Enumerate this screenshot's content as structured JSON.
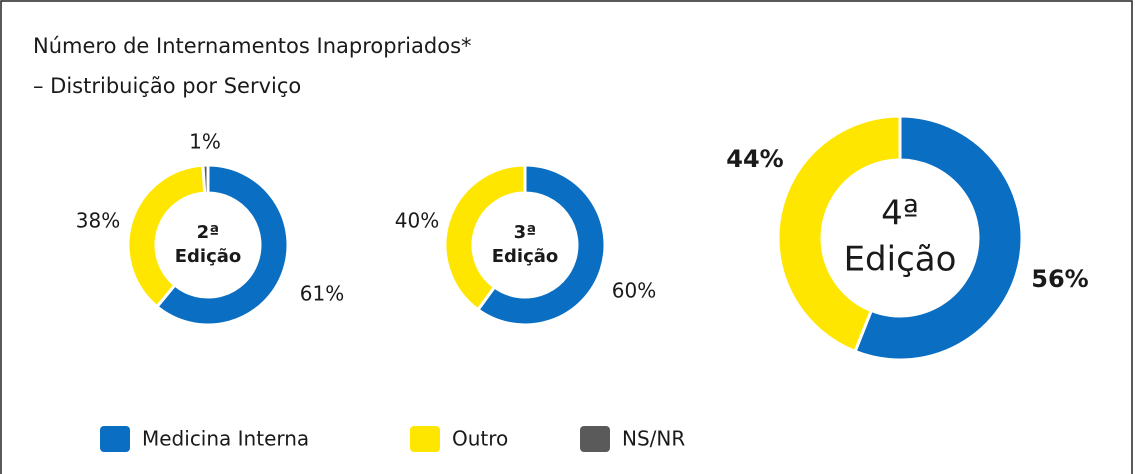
{
  "header": {
    "title": "Número de Internamentos Inapropriados*",
    "subtitle": "– Distribuição por Serviço"
  },
  "chart_data": [
    {
      "type": "donut",
      "center_label": [
        "2ª",
        "Edição"
      ],
      "categories": [
        "Medicina Interna",
        "Outro",
        "NS/NR"
      ],
      "colors": [
        "#0a6ec2",
        "#ffe600",
        "#5a5a5a"
      ],
      "values": [
        61,
        38,
        1
      ],
      "value_labels": [
        "61%",
        "38%",
        "1%"
      ]
    },
    {
      "type": "donut",
      "center_label": [
        "3ª",
        "Edição"
      ],
      "categories": [
        "Medicina Interna",
        "Outro",
        "NS/NR"
      ],
      "colors": [
        "#0a6ec2",
        "#ffe600",
        "#5a5a5a"
      ],
      "values": [
        60,
        40,
        null
      ],
      "value_labels": [
        "60%",
        "40%",
        null
      ]
    },
    {
      "type": "donut",
      "center_label": [
        "4ª",
        "Edição"
      ],
      "categories": [
        "Medicina Interna",
        "Outro",
        "NS/NR"
      ],
      "colors": [
        "#0a6ec2",
        "#ffe600",
        "#5a5a5a"
      ],
      "values": [
        56,
        44,
        null
      ],
      "value_labels": [
        "56%",
        "44%",
        null
      ]
    }
  ]
}
